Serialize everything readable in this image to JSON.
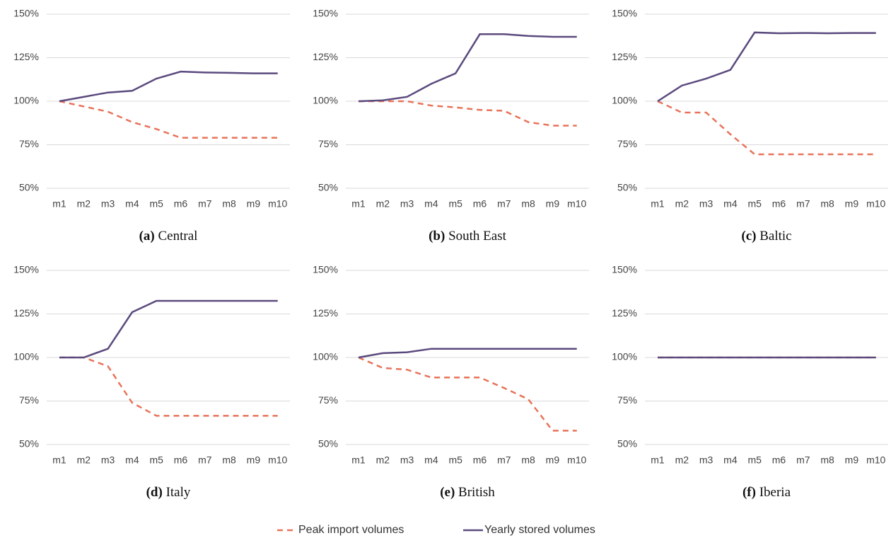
{
  "chart_data": [
    {
      "type": "line",
      "label": "(a)",
      "title": "Central",
      "categories": [
        "m1",
        "m2",
        "m3",
        "m4",
        "m5",
        "m6",
        "m7",
        "m8",
        "m9",
        "m10"
      ],
      "ylim": [
        50,
        150
      ],
      "yticks": [
        {
          "value": 50,
          "label": "50%"
        },
        {
          "value": 75,
          "label": "75%"
        },
        {
          "value": 100,
          "label": "100%"
        },
        {
          "value": 125,
          "label": "125%"
        },
        {
          "value": 150,
          "label": "150%"
        }
      ],
      "grid": true,
      "series": [
        {
          "name": "Peak import volumes",
          "color": "#e8735a",
          "style": "dashed",
          "values": [
            100,
            97,
            94,
            88,
            84,
            79,
            79,
            79,
            79,
            79
          ]
        },
        {
          "name": "Yearly stored volumes",
          "color": "#5b4a7e",
          "style": "solid",
          "values": [
            100,
            102.5,
            105,
            106,
            113,
            117,
            116.5,
            116.3,
            116,
            116
          ]
        }
      ]
    },
    {
      "type": "line",
      "label": "(b)",
      "title": "South East",
      "categories": [
        "m1",
        "m2",
        "m3",
        "m4",
        "m5",
        "m6",
        "m7",
        "m8",
        "m9",
        "m10"
      ],
      "ylim": [
        50,
        150
      ],
      "yticks": [
        {
          "value": 50,
          "label": "50%"
        },
        {
          "value": 75,
          "label": "75%"
        },
        {
          "value": 100,
          "label": "100%"
        },
        {
          "value": 125,
          "label": "125%"
        },
        {
          "value": 150,
          "label": "150%"
        }
      ],
      "grid": true,
      "series": [
        {
          "name": "Peak import volumes",
          "color": "#e8735a",
          "style": "dashed",
          "values": [
            100,
            100,
            100,
            97.5,
            96.5,
            95,
            94.5,
            88,
            86,
            86
          ]
        },
        {
          "name": "Yearly stored volumes",
          "color": "#5b4a7e",
          "style": "solid",
          "values": [
            100,
            100.5,
            102.5,
            110,
            116,
            138.5,
            138.5,
            137.5,
            137,
            137
          ]
        }
      ]
    },
    {
      "type": "line",
      "label": "(c)",
      "title": "Baltic",
      "categories": [
        "m1",
        "m2",
        "m3",
        "m4",
        "m5",
        "m6",
        "m7",
        "m8",
        "m9",
        "m10"
      ],
      "ylim": [
        50,
        150
      ],
      "yticks": [
        {
          "value": 50,
          "label": "50%"
        },
        {
          "value": 75,
          "label": "75%"
        },
        {
          "value": 100,
          "label": "100%"
        },
        {
          "value": 125,
          "label": "125%"
        },
        {
          "value": 150,
          "label": "150%"
        }
      ],
      "grid": true,
      "series": [
        {
          "name": "Peak import volumes",
          "color": "#e8735a",
          "style": "dashed",
          "values": [
            100,
            93.5,
            93.5,
            81,
            69.5,
            69.5,
            69.5,
            69.5,
            69.5,
            69.5
          ]
        },
        {
          "name": "Yearly stored volumes",
          "color": "#5b4a7e",
          "style": "solid",
          "values": [
            100,
            109,
            113,
            118,
            139.5,
            139,
            139.2,
            139,
            139.2,
            139.2
          ]
        }
      ]
    },
    {
      "type": "line",
      "label": "(d)",
      "title": "Italy",
      "categories": [
        "m1",
        "m2",
        "m3",
        "m4",
        "m5",
        "m6",
        "m7",
        "m8",
        "m9",
        "m10"
      ],
      "ylim": [
        50,
        150
      ],
      "yticks": [
        {
          "value": 50,
          "label": "50%"
        },
        {
          "value": 75,
          "label": "75%"
        },
        {
          "value": 100,
          "label": "100%"
        },
        {
          "value": 125,
          "label": "125%"
        },
        {
          "value": 150,
          "label": "150%"
        }
      ],
      "grid": true,
      "series": [
        {
          "name": "Peak import volumes",
          "color": "#e8735a",
          "style": "dashed",
          "values": [
            100,
            100,
            95,
            74,
            66.5,
            66.5,
            66.5,
            66.5,
            66.5,
            66.5
          ]
        },
        {
          "name": "Yearly stored volumes",
          "color": "#5b4a7e",
          "style": "solid",
          "values": [
            100,
            100,
            105,
            126,
            132.5,
            132.5,
            132.5,
            132.5,
            132.5,
            132.5
          ]
        }
      ]
    },
    {
      "type": "line",
      "label": "(e)",
      "title": "British",
      "categories": [
        "m1",
        "m2",
        "m3",
        "m4",
        "m5",
        "m6",
        "m7",
        "m8",
        "m9",
        "m10"
      ],
      "ylim": [
        50,
        150
      ],
      "yticks": [
        {
          "value": 50,
          "label": "50%"
        },
        {
          "value": 75,
          "label": "75%"
        },
        {
          "value": 100,
          "label": "100%"
        },
        {
          "value": 125,
          "label": "125%"
        },
        {
          "value": 150,
          "label": "150%"
        }
      ],
      "grid": true,
      "series": [
        {
          "name": "Peak import volumes",
          "color": "#e8735a",
          "style": "dashed",
          "values": [
            100,
            94,
            93,
            88.5,
            88.5,
            88.5,
            82.5,
            76,
            58,
            58
          ]
        },
        {
          "name": "Yearly stored volumes",
          "color": "#5b4a7e",
          "style": "solid",
          "values": [
            100,
            102.5,
            103,
            105,
            105,
            105,
            105,
            105,
            105,
            105
          ]
        }
      ]
    },
    {
      "type": "line",
      "label": "(f)",
      "title": "Iberia",
      "categories": [
        "m1",
        "m2",
        "m3",
        "m4",
        "m5",
        "m6",
        "m7",
        "m8",
        "m9",
        "m10"
      ],
      "ylim": [
        50,
        150
      ],
      "yticks": [
        {
          "value": 50,
          "label": "50%"
        },
        {
          "value": 75,
          "label": "75%"
        },
        {
          "value": 100,
          "label": "100%"
        },
        {
          "value": 125,
          "label": "125%"
        },
        {
          "value": 150,
          "label": "150%"
        }
      ],
      "grid": true,
      "series": [
        {
          "name": "Peak import volumes",
          "color": "#e8735a",
          "style": "dashed",
          "values": [
            100,
            100,
            100,
            100,
            100,
            100,
            100,
            100,
            100,
            100
          ]
        },
        {
          "name": "Yearly stored volumes",
          "color": "#5b4a7e",
          "style": "solid",
          "values": [
            100,
            100,
            100,
            100,
            100,
            100,
            100,
            100,
            100,
            100
          ]
        }
      ]
    }
  ]
}
